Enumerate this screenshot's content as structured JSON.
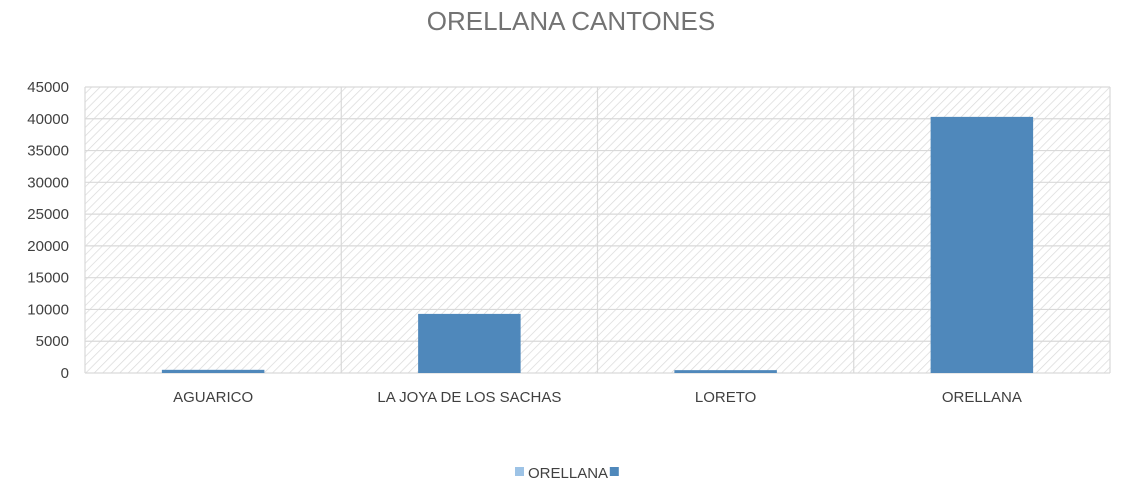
{
  "chart_data": {
    "type": "bar",
    "title": "ORELLANA CANTONES",
    "categories": [
      "AGUARICO",
      "LA JOYA DE LOS SACHAS",
      "LORETO",
      "ORELLANA"
    ],
    "series": [
      {
        "name": "ORELLANA",
        "color": "#9dc3e6",
        "values": [
          0,
          0,
          0,
          0
        ]
      },
      {
        "name": "",
        "color": "#4f88bb",
        "values": [
          500,
          9300,
          450,
          40300
        ]
      }
    ],
    "ylim": [
      0,
      45000
    ],
    "yticks": [
      0,
      5000,
      10000,
      15000,
      20000,
      25000,
      30000,
      35000,
      40000,
      45000
    ],
    "xlabel": "",
    "ylabel": "",
    "grid": true,
    "plot_background": "hatched",
    "legend_position": "bottom"
  }
}
